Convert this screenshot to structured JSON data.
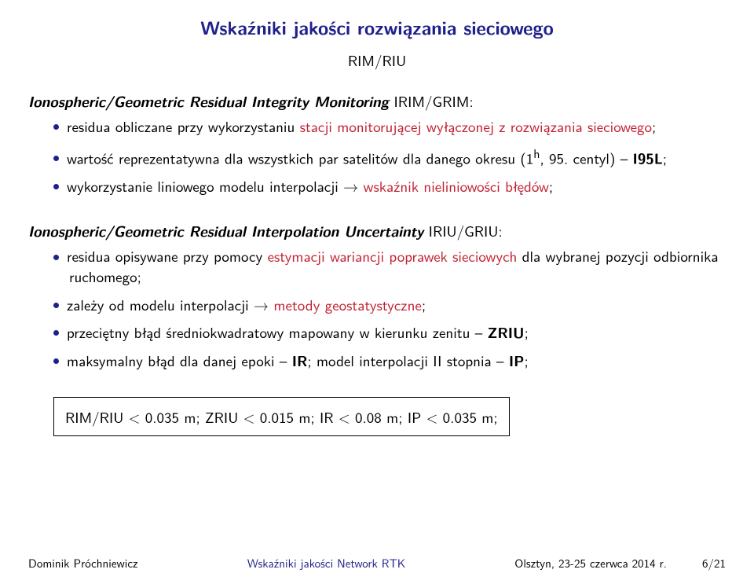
{
  "title": "Wskaźniki jakości rozwiązania sieciowego",
  "title_color": "#20208a",
  "subtitle": "RIM/RIU",
  "section1": {
    "head_ital": "Ionospheric/Geometric Residual Integrity Monitoring",
    "head_plain": " IRIM/GRIM:",
    "items": [
      {
        "pre": "residua obliczane przy wykorzystaniu ",
        "hl": "stacji monitorującej wyłączonej z rozwiązania sieciowego",
        "post": ";"
      },
      {
        "pre": "wartość reprezentatywna dla wszystkich par satelitów dla danego okresu (1",
        "sup": "h",
        "mid": ", 95. centyl) – ",
        "bold": "I95L",
        "post": ";"
      },
      {
        "pre": "wykorzystanie liniowego modelu interpolacji → ",
        "hl": "wskaźnik nieliniowości błędów",
        "post": ";"
      }
    ]
  },
  "section2": {
    "head_ital": "Ionospheric/Geometric Residual Interpolation Uncertainty",
    "head_plain": " IRIU/GRIU:",
    "items": [
      {
        "pre": "residua opisywane przy pomocy ",
        "hl": "estymacji wariancji poprawek sieciowych",
        "post": " dla wybranej pozycji odbiornika ruchomego;"
      },
      {
        "pre": "zależy od modelu interpolacji → ",
        "hl": "metody geostatystyczne",
        "post": ";"
      },
      {
        "pre": "przeciętny błąd średniokwadratowy mapowany w kierunku zenitu – ",
        "bold": "ZRIU",
        "post": ";"
      },
      {
        "pre": "maksymalny błąd dla danej epoki – ",
        "bold": "IR",
        "mid": "; model interpolacji II stopnia – ",
        "bold2": "IP",
        "post": ";"
      }
    ]
  },
  "box": "RIM/RIU < 0.035 m;   ZRIU < 0.015 m;   IR < 0.08 m;   IP < 0.035 m;",
  "footer": {
    "left": "Dominik Próchniewicz",
    "center": "Wskaźniki jakości Network RTK",
    "right_pre": "Olsztyn, 23-25 czerwca 2014 r.",
    "page": "6/21"
  }
}
